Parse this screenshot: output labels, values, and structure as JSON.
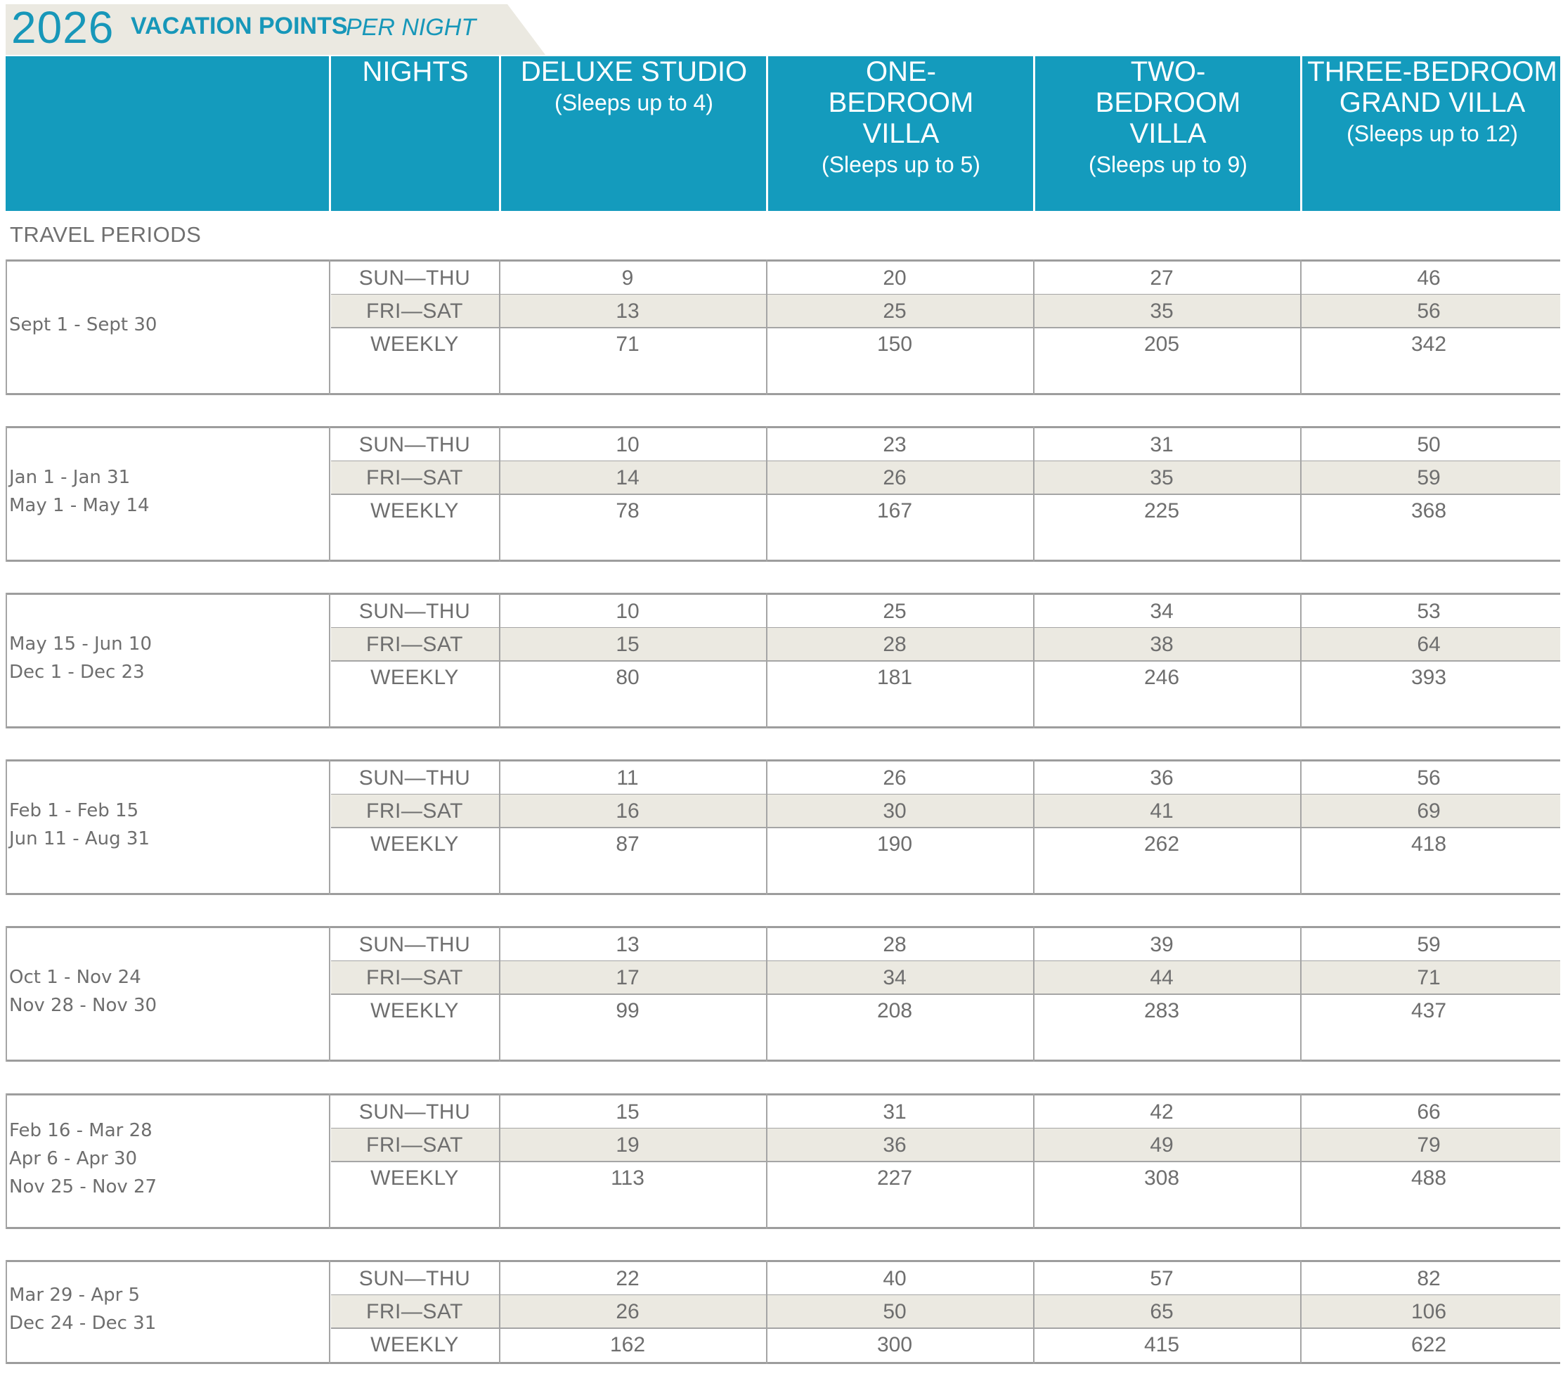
{
  "title": {
    "year": "2026",
    "main": "VACATION POINTS",
    "italic": "PER NIGHT"
  },
  "header": {
    "nights": "NIGHTS",
    "columns": [
      {
        "name": "DELUXE STUDIO",
        "sub": "(Sleeps up to 4)"
      },
      {
        "name": "ONE-BEDROOM VILLA",
        "sub": "(Sleeps up to 5)"
      },
      {
        "name": "TWO-BEDROOM VILLA",
        "sub": "(Sleeps up to 9)"
      },
      {
        "name": "THREE-BEDROOM GRAND VILLA",
        "sub": "(Sleeps up to 12)"
      }
    ]
  },
  "travel_periods_label": "TRAVEL PERIODS",
  "night_types": [
    "SUN—THU",
    "FRI—SAT",
    "WEEKLY"
  ],
  "blocks": [
    {
      "periods": [
        "Sept 1 - Sept 30"
      ],
      "rows": [
        [
          "9",
          "20",
          "27",
          "46"
        ],
        [
          "13",
          "25",
          "35",
          "56"
        ],
        [
          "71",
          "150",
          "205",
          "342"
        ]
      ]
    },
    {
      "periods": [
        "Jan 1 - Jan 31",
        "May 1 - May 14"
      ],
      "rows": [
        [
          "10",
          "23",
          "31",
          "50"
        ],
        [
          "14",
          "26",
          "35",
          "59"
        ],
        [
          "78",
          "167",
          "225",
          "368"
        ]
      ]
    },
    {
      "periods": [
        "May 15 - Jun 10",
        "Dec 1 - Dec 23"
      ],
      "rows": [
        [
          "10",
          "25",
          "34",
          "53"
        ],
        [
          "15",
          "28",
          "38",
          "64"
        ],
        [
          "80",
          "181",
          "246",
          "393"
        ]
      ]
    },
    {
      "periods": [
        "Feb 1 - Feb 15",
        "Jun 11 - Aug 31"
      ],
      "rows": [
        [
          "11",
          "26",
          "36",
          "56"
        ],
        [
          "16",
          "30",
          "41",
          "69"
        ],
        [
          "87",
          "190",
          "262",
          "418"
        ]
      ]
    },
    {
      "periods": [
        "Oct 1 - Nov 24",
        "Nov 28 - Nov 30"
      ],
      "rows": [
        [
          "13",
          "28",
          "39",
          "59"
        ],
        [
          "17",
          "34",
          "44",
          "71"
        ],
        [
          "99",
          "208",
          "283",
          "437"
        ]
      ]
    },
    {
      "periods": [
        "Feb 16 - Mar 28",
        "Apr 6 - Apr 30",
        "Nov 25 - Nov 27"
      ],
      "rows": [
        [
          "15",
          "31",
          "42",
          "66"
        ],
        [
          "19",
          "36",
          "49",
          "79"
        ],
        [
          "113",
          "227",
          "308",
          "488"
        ]
      ]
    },
    {
      "periods": [
        "Mar 29 - Apr 5",
        "Dec 24 - Dec 31"
      ],
      "rows": [
        [
          "22",
          "40",
          "57",
          "82"
        ],
        [
          "26",
          "50",
          "65",
          "106"
        ],
        [
          "162",
          "300",
          "415",
          "622"
        ]
      ]
    }
  ]
}
